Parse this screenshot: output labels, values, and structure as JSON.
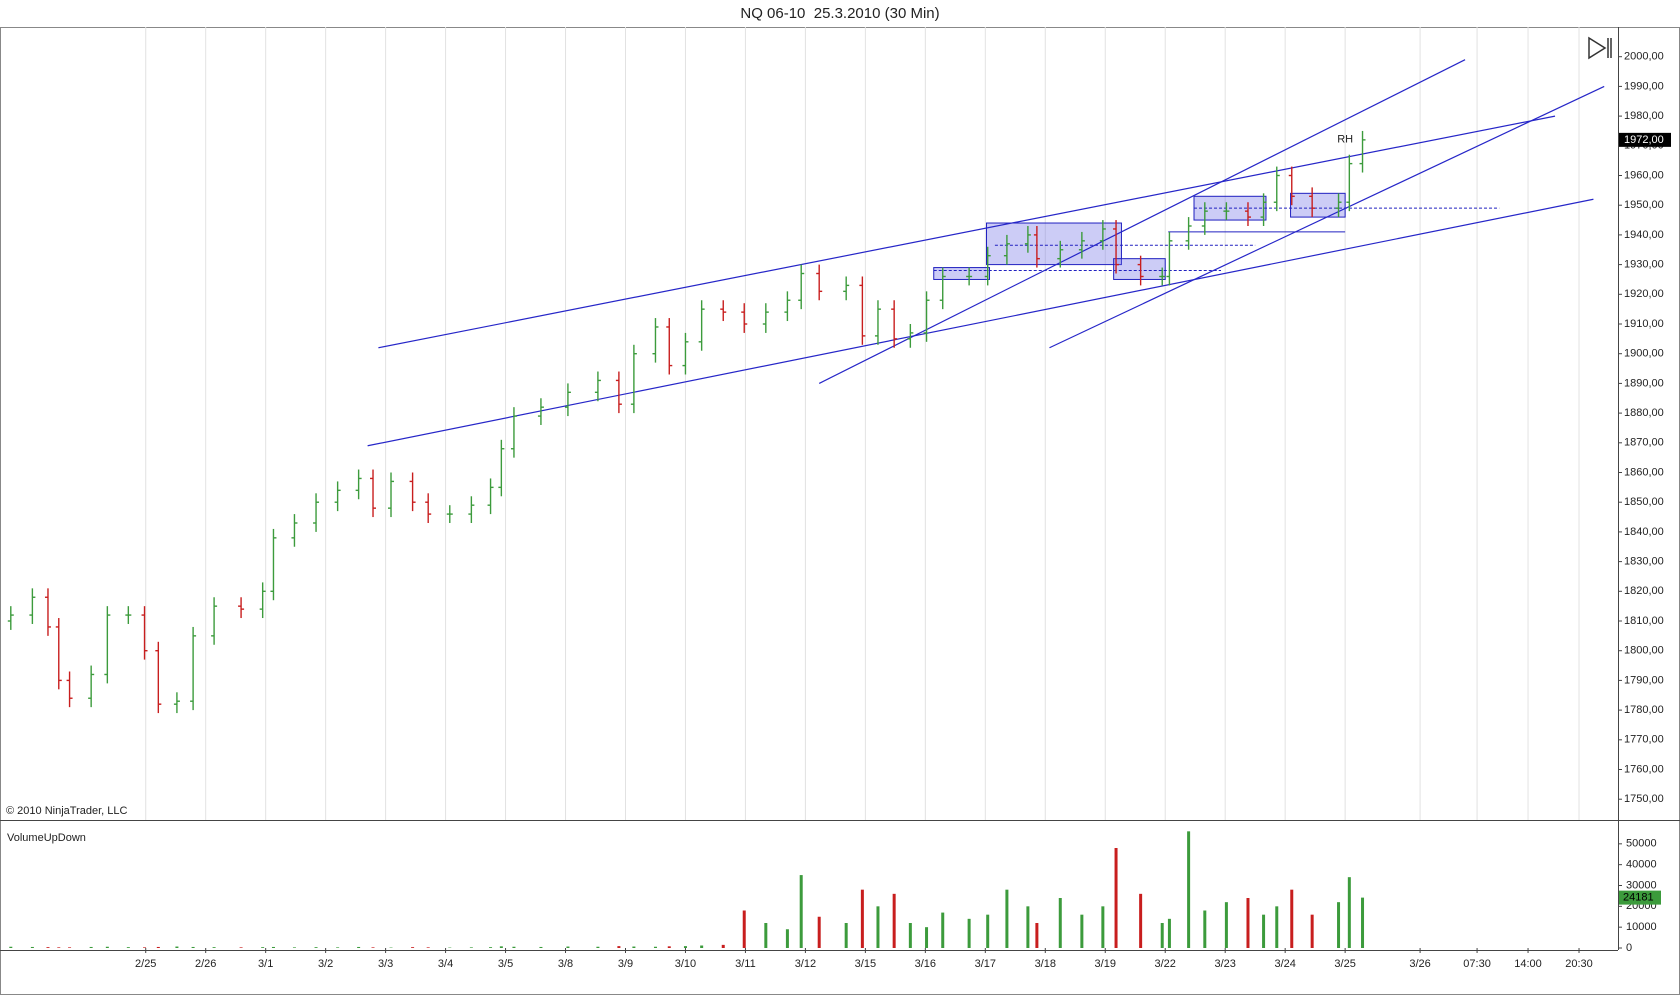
{
  "chart_data": {
    "type": "ohlc",
    "title": "NQ 06-10  25.3.2010 (30 Min)",
    "copyright": "© 2010 NinjaTrader, LLC",
    "up_color": "#3c9b3c",
    "down_color": "#c81e1e",
    "grid": true,
    "x": [
      -2.25,
      -1.89,
      -1.63,
      -1.45,
      -1.27,
      -0.91,
      -0.64,
      -0.29,
      -0.02,
      0.21,
      0.52,
      0.79,
      1.14,
      1.59,
      1.95,
      2.13,
      2.48,
      2.84,
      3.2,
      3.55,
      3.79,
      4.09,
      4.45,
      4.71,
      5.07,
      5.43,
      5.75,
      5.93,
      6.14,
      6.59,
      7.04,
      7.54,
      7.89,
      8.14,
      8.5,
      8.73,
      9,
      9.27,
      9.63,
      9.98,
      10.34,
      10.7,
      10.93,
      11.23,
      11.68,
      11.95,
      12.21,
      12.48,
      12.75,
      13.02,
      13.29,
      13.73,
      14.04,
      14.36,
      14.71,
      14.86,
      15.25,
      15.61,
      15.96,
      16.18,
      16.59,
      16.95,
      17.07,
      17.39,
      17.66,
      18.02,
      18.38,
      18.64,
      18.86,
      19.11,
      19.45,
      19.89,
      20.07,
      20.29
    ],
    "open": [
      1810,
      1812,
      1818,
      1808,
      1790,
      1784,
      1792,
      1812,
      1812,
      1800,
      1782,
      1783,
      1805,
      1815,
      1814,
      1820,
      1838,
      1843,
      1850,
      1854,
      1858,
      1848,
      1857,
      1850,
      1846,
      1846,
      1849,
      1855,
      1868,
      1879,
      1882,
      1887,
      1891,
      1883,
      1900,
      1909,
      1896,
      1904,
      1915,
      1914,
      1910,
      1914,
      1918,
      1927,
      1921,
      1923,
      1906,
      1915,
      1905,
      1907,
      1918,
      1926,
      1926,
      1933,
      1937,
      1940,
      1932,
      1935,
      1938,
      1942,
      1930,
      1926,
      1926,
      1938,
      1943,
      1948,
      1948,
      1946,
      1951,
      1960,
      1953,
      1949,
      1951,
      1964
    ],
    "high": [
      1815,
      1821,
      1821,
      1811,
      1793,
      1795,
      1815,
      1815,
      1815,
      1803,
      1786,
      1808,
      1818,
      1818,
      1823,
      1841,
      1846,
      1853,
      1857,
      1861,
      1861,
      1860,
      1860,
      1853,
      1849,
      1852,
      1858,
      1871,
      1882,
      1885,
      1890,
      1894,
      1894,
      1903,
      1912,
      1912,
      1907,
      1918,
      1918,
      1917,
      1917,
      1921,
      1930,
      1930,
      1926,
      1926,
      1918,
      1918,
      1910,
      1921,
      1929,
      1929,
      1936,
      1940,
      1943,
      1943,
      1938,
      1941,
      1945,
      1945,
      1933,
      1929,
      1941,
      1946,
      1951,
      1951,
      1951,
      1954,
      1963,
      1963,
      1956,
      1954,
      1967,
      1975
    ],
    "low": [
      1807,
      1809,
      1805,
      1787,
      1781,
      1781,
      1789,
      1809,
      1797,
      1779,
      1779,
      1780,
      1802,
      1811,
      1811,
      1817,
      1835,
      1840,
      1847,
      1851,
      1845,
      1845,
      1847,
      1843,
      1843,
      1843,
      1846,
      1852,
      1865,
      1876,
      1879,
      1884,
      1880,
      1880,
      1897,
      1893,
      1893,
      1901,
      1911,
      1907,
      1907,
      1911,
      1915,
      1918,
      1918,
      1903,
      1903,
      1902,
      1902,
      1904,
      1915,
      1923,
      1923,
      1930,
      1934,
      1929,
      1929,
      1932,
      1935,
      1927,
      1923,
      1923,
      1923,
      1935,
      1940,
      1945,
      1943,
      1943,
      1948,
      1950,
      1946,
      1946,
      1948,
      1961
    ],
    "close": [
      1812,
      1818,
      1808,
      1790,
      1784,
      1792,
      1812,
      1812,
      1800,
      1782,
      1783,
      1805,
      1815,
      1814,
      1820,
      1838,
      1843,
      1850,
      1854,
      1858,
      1848,
      1857,
      1850,
      1846,
      1846,
      1849,
      1855,
      1868,
      1879,
      1882,
      1887,
      1891,
      1883,
      1900,
      1909,
      1896,
      1904,
      1915,
      1914,
      1910,
      1914,
      1918,
      1927,
      1921,
      1923,
      1906,
      1915,
      1905,
      1907,
      1918,
      1926,
      1926,
      1933,
      1937,
      1940,
      1932,
      1935,
      1938,
      1942,
      1930,
      1926,
      1926,
      1938,
      1943,
      1948,
      1948,
      1946,
      1951,
      1960,
      1953,
      1949,
      1951,
      1964,
      1972
    ],
    "last_label": "1972,00",
    "xlim": [
      -2.43,
      24.55
    ],
    "ylim": [
      1743,
      2010
    ],
    "xticks": [
      {
        "value": 0,
        "label": "2/25"
      },
      {
        "value": 1,
        "label": "2/26"
      },
      {
        "value": 2,
        "label": "3/1"
      },
      {
        "value": 3,
        "label": "3/2"
      },
      {
        "value": 4,
        "label": "3/3"
      },
      {
        "value": 5,
        "label": "3/4"
      },
      {
        "value": 6,
        "label": "3/5"
      },
      {
        "value": 7,
        "label": "3/8"
      },
      {
        "value": 8,
        "label": "3/9"
      },
      {
        "value": 9,
        "label": "3/10"
      },
      {
        "value": 10,
        "label": "3/11"
      },
      {
        "value": 11,
        "label": "3/12"
      },
      {
        "value": 12,
        "label": "3/15"
      },
      {
        "value": 13,
        "label": "3/16"
      },
      {
        "value": 14,
        "label": "3/17"
      },
      {
        "value": 15,
        "label": "3/18"
      },
      {
        "value": 16,
        "label": "3/19"
      },
      {
        "value": 17,
        "label": "3/22"
      },
      {
        "value": 18,
        "label": "3/23"
      },
      {
        "value": 19,
        "label": "3/24"
      },
      {
        "value": 20,
        "label": "3/25"
      },
      {
        "value": 21.25,
        "label": "3/26"
      },
      {
        "value": 22.2,
        "label": "07:30"
      },
      {
        "value": 23.05,
        "label": "14:00"
      },
      {
        "value": 23.9,
        "label": "20:30"
      }
    ],
    "yticks": [
      {
        "value": 1750,
        "label": "1750,00"
      },
      {
        "value": 1760,
        "label": "1760,00"
      },
      {
        "value": 1770,
        "label": "1770,00"
      },
      {
        "value": 1780,
        "label": "1780,00"
      },
      {
        "value": 1790,
        "label": "1790,00"
      },
      {
        "value": 1800,
        "label": "1800,00"
      },
      {
        "value": 1810,
        "label": "1810,00"
      },
      {
        "value": 1820,
        "label": "1820,00"
      },
      {
        "value": 1830,
        "label": "1830,00"
      },
      {
        "value": 1840,
        "label": "1840,00"
      },
      {
        "value": 1850,
        "label": "1850,00"
      },
      {
        "value": 1860,
        "label": "1860,00"
      },
      {
        "value": 1870,
        "label": "1870,00"
      },
      {
        "value": 1880,
        "label": "1880,00"
      },
      {
        "value": 1890,
        "label": "1890,00"
      },
      {
        "value": 1900,
        "label": "1900,00"
      },
      {
        "value": 1910,
        "label": "1910,00"
      },
      {
        "value": 1920,
        "label": "1920,00"
      },
      {
        "value": 1930,
        "label": "1930,00"
      },
      {
        "value": 1940,
        "label": "1940,00"
      },
      {
        "value": 1950,
        "label": "1950,00"
      },
      {
        "value": 1960,
        "label": "1960,00"
      },
      {
        "value": 1970,
        "label": "1970,00"
      },
      {
        "value": 1980,
        "label": "1980,00"
      },
      {
        "value": 1990,
        "label": "1990,00"
      },
      {
        "value": 2000,
        "label": "2000,00"
      }
    ],
    "trendlines": [
      {
        "x": [
          3.88,
          23.5
        ],
        "y": [
          1902,
          1980
        ]
      },
      {
        "x": [
          3.7,
          24.14
        ],
        "y": [
          1869,
          1952
        ]
      },
      {
        "x": [
          11.23,
          22.0
        ],
        "y": [
          1890,
          1999
        ]
      },
      {
        "x": [
          15.07,
          24.32
        ],
        "y": [
          1902,
          1990
        ]
      }
    ],
    "boxes": [
      {
        "x": [
          13.14,
          14.07
        ],
        "y": [
          1925,
          1929
        ]
      },
      {
        "x": [
          14.02,
          16.27
        ],
        "y": [
          1930,
          1944
        ]
      },
      {
        "x": [
          16.14,
          17.0
        ],
        "y": [
          1925,
          1932
        ]
      },
      {
        "x": [
          17.48,
          18.68
        ],
        "y": [
          1945,
          1953
        ]
      },
      {
        "x": [
          19.09,
          20.0
        ],
        "y": [
          1946,
          1954
        ]
      }
    ],
    "levels": [
      {
        "x": [
          13.14,
          17.93
        ],
        "y": 1928,
        "style": "dashed"
      },
      {
        "x": [
          14.16,
          18.5
        ],
        "y": 1936.5,
        "style": "dashed"
      },
      {
        "x": [
          17.48,
          22.57
        ],
        "y": 1949,
        "style": "dashed"
      },
      {
        "x": [
          17.05,
          20.0
        ],
        "y": 1941,
        "style": "solid"
      }
    ],
    "annotation": {
      "text": "RH",
      "x": 20,
      "y": 1970
    },
    "volume": {
      "name": "VolumeUpDown",
      "ylim": [
        0,
        60000
      ],
      "yticks": [
        0,
        10000,
        20000,
        30000,
        40000,
        50000
      ],
      "values": [
        600,
        500,
        400,
        300,
        300,
        500,
        600,
        400,
        300,
        500,
        700,
        500,
        400,
        300,
        400,
        500,
        300,
        400,
        300,
        500,
        300,
        200,
        400,
        300,
        200,
        300,
        400,
        800,
        600,
        500,
        700,
        600,
        900,
        700,
        600,
        800,
        900,
        1200,
        1500,
        18000,
        12000,
        9000,
        35000,
        15000,
        12000,
        28000,
        20000,
        26000,
        12000,
        10000,
        17000,
        14000,
        16000,
        28000,
        20000,
        12000,
        24000,
        16000,
        20000,
        48000,
        26000,
        12000,
        14000,
        56000,
        18000,
        22000,
        24000,
        16000,
        20000,
        28000,
        16000,
        22000,
        34000,
        24181
      ]
    }
  }
}
